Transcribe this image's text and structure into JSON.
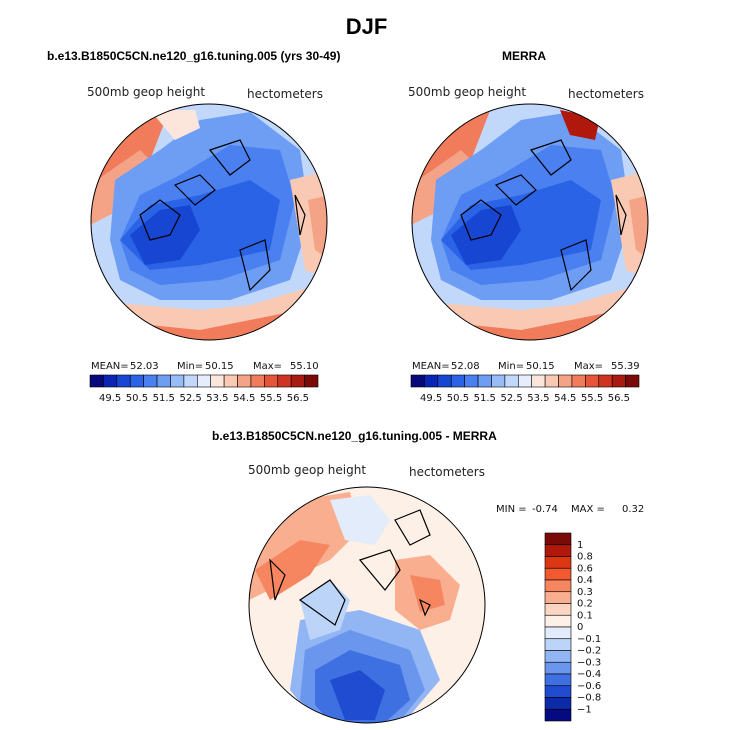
{
  "figure": {
    "season": "DJF",
    "left_title": "b.e13.B1850C5CN.ne120_g16.tuning.005 (yrs 30-49)",
    "right_title": "MERRA",
    "bottom_title": "b.e13.B1850C5CN.ne120_g16.tuning.005 - MERRA"
  },
  "panels": {
    "left": {
      "field_label": "500mb geop height",
      "units_label": "hectometers",
      "mean_label": "MEAN=",
      "mean": "52.03",
      "min_label": "Min=",
      "min": "50.15",
      "max_label": "Max=",
      "max": "55.10"
    },
    "right": {
      "field_label": "500mb geop height",
      "units_label": "hectometers",
      "mean_label": "MEAN=",
      "mean": "52.08",
      "min_label": "Min=",
      "min": "50.15",
      "max_label": "Max=",
      "max": "55.39"
    },
    "diff": {
      "field_label": "500mb geop height",
      "units_label": "hectometers",
      "min_label": "MIN =",
      "min": "-0.74",
      "max_label": "MAX =",
      "max": "0.32"
    }
  },
  "colorbars": {
    "horizontal": {
      "colors": [
        "#08087a",
        "#0a24b4",
        "#1646d2",
        "#2a63e6",
        "#4a80f0",
        "#6e9ef4",
        "#98bcf8",
        "#c2d8fb",
        "#e6eefd",
        "#fce6dc",
        "#f9c9b4",
        "#f5a386",
        "#f07c5c",
        "#e6553a",
        "#cf3322",
        "#a81a12",
        "#7a0a08"
      ],
      "ticks": [
        "49.5",
        "50.5",
        "51.5",
        "52.5",
        "53.5",
        "54.5",
        "55.5",
        "56.5"
      ]
    },
    "vertical": {
      "colors": [
        "#7a0a08",
        "#b0180c",
        "#dc3612",
        "#f05a2e",
        "#f68660",
        "#f9ae90",
        "#fcd6c2",
        "#fdf0e6",
        "#e2ecfb",
        "#bcd4f8",
        "#92b6f4",
        "#6a96ee",
        "#3f70e2",
        "#1f4cd0",
        "#0c2aa8",
        "#060a80"
      ],
      "ticks": [
        "1",
        "0.8",
        "0.6",
        "0.4",
        "0.3",
        "0.2",
        "0.1",
        "0",
        "−0.1",
        "−0.2",
        "−0.3",
        "−0.4",
        "−0.6",
        "−0.8",
        "−1"
      ]
    }
  }
}
